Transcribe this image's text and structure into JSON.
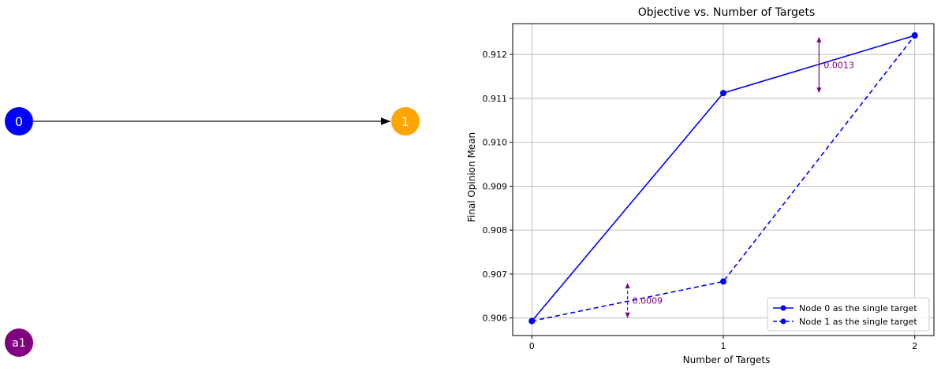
{
  "graph": {
    "nodes": [
      {
        "id": "0",
        "label": "0",
        "color": "#0000ff"
      },
      {
        "id": "1",
        "label": "1",
        "color": "#ffa500"
      },
      {
        "id": "a1",
        "label": "a1",
        "color": "#800080"
      }
    ],
    "edges": [
      {
        "from": "0",
        "to": "1"
      }
    ]
  },
  "chart_data": {
    "type": "line",
    "title": "Objective vs. Number of Targets",
    "xlabel": "Number of Targets",
    "ylabel": "Final Opinion Mean",
    "x": [
      0,
      1,
      2
    ],
    "xticks": [
      "0",
      "1",
      "2"
    ],
    "xlim": [
      -0.1,
      2.1
    ],
    "ylim": [
      0.9056,
      0.9127
    ],
    "yticks": [
      "0.906",
      "0.907",
      "0.908",
      "0.909",
      "0.910",
      "0.911",
      "0.912"
    ],
    "grid": true,
    "legend_position": "lower-right",
    "series": [
      {
        "name": "Node 0 as the single target",
        "values": [
          0.90593,
          0.91112,
          0.91243
        ],
        "color": "#0000ff",
        "linestyle": "solid",
        "marker": "circle"
      },
      {
        "name": "Node 1 as the single target",
        "values": [
          0.90593,
          0.90683,
          0.91243
        ],
        "color": "#0000ff",
        "linestyle": "dashed",
        "marker": "circle"
      }
    ],
    "annotations": [
      {
        "text": "0.0009",
        "x": 0.5,
        "y_low": 0.906,
        "y_high": 0.9068,
        "color": "#800080",
        "linestyle": "dashed"
      },
      {
        "text": "0.0013",
        "x": 1.5,
        "y_low": 0.91112,
        "y_high": 0.9124,
        "color": "#800080",
        "linestyle": "solid"
      }
    ]
  }
}
